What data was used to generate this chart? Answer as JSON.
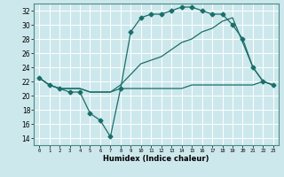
{
  "xlabel": "Humidex (Indice chaleur)",
  "bg_color": "#cde8ec",
  "grid_color": "#ffffff",
  "line_color": "#1a6e6a",
  "xlim": [
    -0.5,
    23.5
  ],
  "ylim": [
    13,
    33
  ],
  "yticks": [
    14,
    16,
    18,
    20,
    22,
    24,
    26,
    28,
    30,
    32
  ],
  "xticks": [
    0,
    1,
    2,
    3,
    4,
    5,
    6,
    7,
    8,
    9,
    10,
    11,
    12,
    13,
    14,
    15,
    16,
    17,
    18,
    19,
    20,
    21,
    22,
    23
  ],
  "series": [
    {
      "x": [
        0,
        1,
        2,
        3,
        4,
        5,
        6,
        7,
        8,
        9,
        10,
        11,
        12,
        13,
        14,
        15,
        16,
        17,
        18,
        19,
        20,
        21,
        22,
        23
      ],
      "y": [
        22.5,
        21.5,
        21,
        20.5,
        20.5,
        17.5,
        16.5,
        14.2,
        21,
        29,
        31,
        31.5,
        31.5,
        32,
        32.5,
        32.5,
        32,
        31.5,
        31.5,
        30,
        28,
        24,
        22,
        21.5
      ],
      "marker": "D",
      "markersize": 2.5
    },
    {
      "x": [
        0,
        1,
        2,
        3,
        4,
        5,
        6,
        7,
        8,
        9,
        10,
        11,
        12,
        13,
        14,
        15,
        16,
        17,
        18,
        19,
        20,
        21,
        22,
        23
      ],
      "y": [
        22.5,
        21.5,
        21,
        21,
        21,
        20.5,
        20.5,
        20.5,
        21.5,
        23,
        24.5,
        25,
        25.5,
        26.5,
        27.5,
        28,
        29,
        29.5,
        30.5,
        31,
        27.5,
        24,
        22,
        21.5
      ],
      "marker": null,
      "markersize": 0
    },
    {
      "x": [
        0,
        1,
        2,
        3,
        4,
        5,
        6,
        7,
        8,
        9,
        10,
        11,
        12,
        13,
        14,
        15,
        16,
        17,
        18,
        19,
        20,
        21,
        22,
        23
      ],
      "y": [
        22.5,
        21.5,
        21,
        21,
        21,
        20.5,
        20.5,
        20.5,
        21,
        21,
        21,
        21,
        21,
        21,
        21,
        21.5,
        21.5,
        21.5,
        21.5,
        21.5,
        21.5,
        21.5,
        22,
        21.5
      ],
      "marker": null,
      "markersize": 0
    }
  ]
}
